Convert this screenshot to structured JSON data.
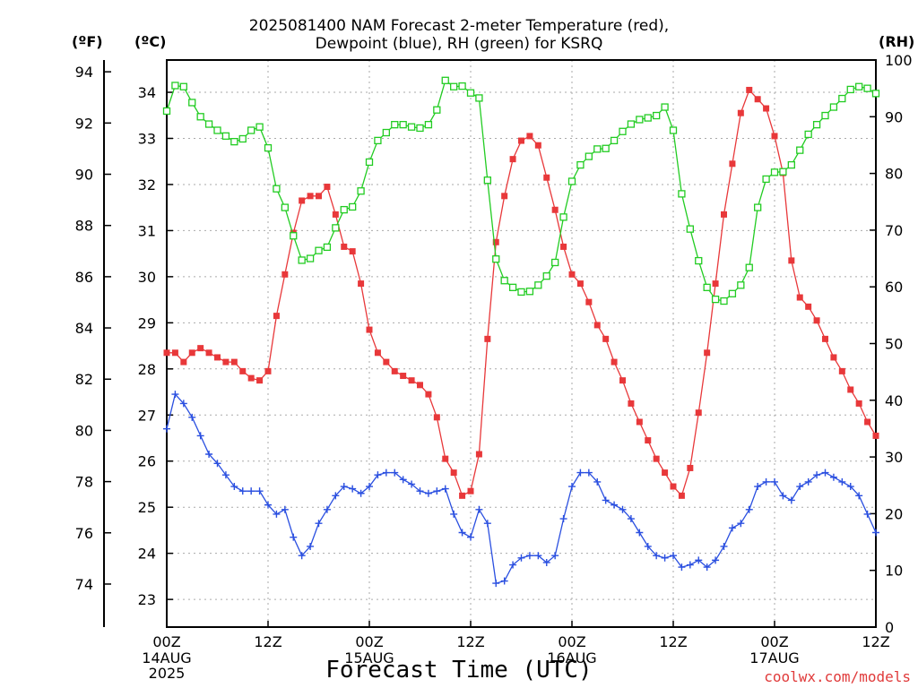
{
  "title_line1": "2025081400 NAM Forecast 2-meter Temperature (red),",
  "title_line2": "Dewpoint (blue), RH (green) for KSRQ",
  "unit_f": "(ºF)",
  "unit_c": "(ºC)",
  "unit_rh": "(RH)",
  "xlabel": "Forecast Time (UTC)",
  "credit": "coolwx.com/models",
  "colors": {
    "temperature": "#e8383a",
    "dewpoint": "#2a4fe0",
    "rh": "#22cc22",
    "grid": "#aaaaaa"
  },
  "chart_data": {
    "type": "line",
    "title": "2025081400 NAM Forecast 2-meter Temperature (red), Dewpoint (blue), RH (green) for KSRQ",
    "xlabel": "Forecast Time (UTC)",
    "x_unit": "forecast hour from 2025-08-14 00Z (hourly)",
    "x_range": [
      0,
      84
    ],
    "x_ticks": [
      {
        "x": 0,
        "label": "00Z",
        "sub": [
          "14AUG",
          "2025"
        ]
      },
      {
        "x": 12,
        "label": "12Z",
        "sub": []
      },
      {
        "x": 24,
        "label": "00Z",
        "sub": [
          "15AUG"
        ]
      },
      {
        "x": 36,
        "label": "12Z",
        "sub": []
      },
      {
        "x": 48,
        "label": "00Z",
        "sub": [
          "16AUG"
        ]
      },
      {
        "x": 60,
        "label": "12Z",
        "sub": []
      },
      {
        "x": 72,
        "label": "00Z",
        "sub": [
          "17AUG"
        ]
      },
      {
        "x": 84,
        "label": "12Z",
        "sub": []
      }
    ],
    "y_left_celsius": {
      "label": "(ºC)",
      "range": [
        22.4,
        34.7
      ],
      "ticks": [
        23,
        24,
        25,
        26,
        27,
        28,
        29,
        30,
        31,
        32,
        33,
        34
      ]
    },
    "y_left_fahrenheit": {
      "label": "(ºF)",
      "ticks": [
        74,
        76,
        78,
        80,
        82,
        84,
        86,
        88,
        90,
        92,
        94
      ]
    },
    "y_right_rh": {
      "label": "(RH)",
      "range": [
        0,
        100
      ],
      "ticks": [
        0,
        10,
        20,
        30,
        40,
        50,
        60,
        70,
        80,
        90,
        100
      ]
    },
    "grid": true,
    "series": [
      {
        "name": "Temperature",
        "axis": "celsius",
        "marker": "filled-square",
        "color": "#e8383a",
        "values": [
          28.35,
          28.35,
          28.15,
          28.35,
          28.45,
          28.35,
          28.25,
          28.15,
          28.15,
          27.95,
          27.8,
          27.75,
          27.95,
          29.15,
          30.05,
          30.95,
          31.65,
          31.75,
          31.75,
          31.95,
          31.35,
          30.65,
          30.55,
          29.85,
          28.85,
          28.35,
          28.15,
          27.95,
          27.85,
          27.75,
          27.65,
          27.45,
          26.95,
          26.05,
          25.75,
          25.25,
          25.35,
          26.15,
          28.65,
          30.75,
          31.75,
          32.55,
          32.95,
          33.05,
          32.85,
          32.15,
          31.45,
          30.65,
          30.05,
          29.85,
          29.45,
          28.95,
          28.65,
          28.15,
          27.75,
          27.25,
          26.85,
          26.45,
          26.05,
          25.75,
          25.45,
          25.25,
          25.85,
          27.05,
          28.35,
          29.85,
          31.35,
          32.45,
          33.55,
          34.05,
          33.85,
          33.65,
          33.05,
          32.25,
          30.35,
          29.55,
          29.35,
          29.05,
          28.65,
          28.25,
          27.95,
          27.55,
          27.25,
          26.85,
          26.55
        ]
      },
      {
        "name": "Dewpoint",
        "axis": "celsius",
        "marker": "plus",
        "color": "#2a4fe0",
        "values": [
          26.7,
          27.45,
          27.25,
          26.95,
          26.55,
          26.15,
          25.95,
          25.7,
          25.45,
          25.35,
          25.35,
          25.35,
          25.05,
          24.85,
          24.95,
          24.35,
          23.95,
          24.15,
          24.65,
          24.95,
          25.25,
          25.45,
          25.4,
          25.3,
          25.45,
          25.7,
          25.75,
          25.75,
          25.6,
          25.5,
          25.35,
          25.3,
          25.35,
          25.4,
          24.85,
          24.45,
          24.35,
          24.95,
          24.65,
          23.35,
          23.4,
          23.75,
          23.9,
          23.95,
          23.95,
          23.8,
          23.95,
          24.75,
          25.45,
          25.75,
          25.75,
          25.55,
          25.15,
          25.05,
          24.95,
          24.75,
          24.45,
          24.15,
          23.95,
          23.9,
          23.95,
          23.7,
          23.75,
          23.85,
          23.7,
          23.85,
          24.15,
          24.55,
          24.65,
          24.95,
          25.45,
          25.55,
          25.55,
          25.25,
          25.15,
          25.45,
          25.55,
          25.7,
          25.75,
          25.65,
          25.55,
          25.45,
          25.25,
          24.85,
          24.45
        ]
      },
      {
        "name": "RH",
        "axis": "rh",
        "marker": "open-square",
        "color": "#22cc22",
        "values": [
          91,
          95.5,
          95.3,
          92.5,
          90,
          88.7,
          87.6,
          86.6,
          85.6,
          86.1,
          87.6,
          88.2,
          84.5,
          77.3,
          74,
          69,
          64.7,
          65,
          66.4,
          67,
          70.4,
          73.6,
          74.1,
          76.9,
          82,
          85.8,
          87.2,
          88.6,
          88.6,
          88.2,
          88,
          88.6,
          91.2,
          96.4,
          95.3,
          95.4,
          94.2,
          93.3,
          78.8,
          64.9,
          61.1,
          59.9,
          59.1,
          59.2,
          60.3,
          61.9,
          64.3,
          72.3,
          78.6,
          81.5,
          83,
          84.3,
          84.4,
          85.8,
          87.4,
          88.7,
          89.5,
          89.8,
          90.2,
          91.7,
          87.6,
          76.4,
          70.2,
          64.6,
          59.9,
          57.8,
          57.5,
          58.8,
          60.3,
          63.4,
          74,
          79,
          80.2,
          80.3,
          81.5,
          84.1,
          86.9,
          88.6,
          90.2,
          91.7,
          93.2,
          94.8,
          95.3,
          95,
          94.1
        ]
      }
    ]
  }
}
